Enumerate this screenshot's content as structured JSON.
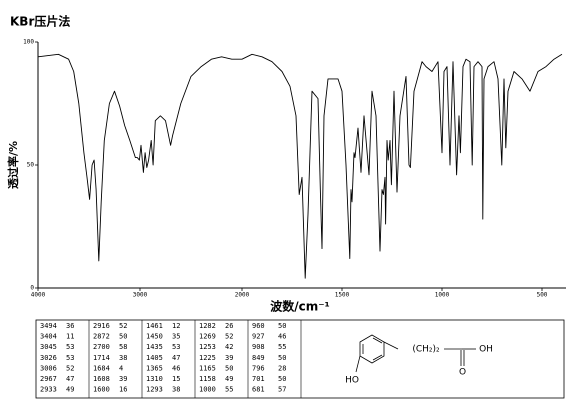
{
  "chart_data": {
    "type": "line",
    "title": "KBr压片法",
    "xlabel": "波数/cm⁻¹",
    "ylabel": "透过率/%",
    "x": [
      4000,
      3800,
      3700,
      3650,
      3600,
      3550,
      3520,
      3494,
      3470,
      3450,
      3430,
      3404,
      3380,
      3350,
      3300,
      3250,
      3200,
      3150,
      3100,
      3045,
      3026,
      3006,
      2990,
      2967,
      2950,
      2933,
      2916,
      2890,
      2872,
      2850,
      2800,
      2750,
      2700,
      2680,
      2600,
      2500,
      2400,
      2300,
      2200,
      2100,
      2000,
      1950,
      1900,
      1850,
      1800,
      1760,
      1730,
      1714,
      1700,
      1684,
      1670,
      1650,
      1620,
      1608,
      1600,
      1590,
      1570,
      1520,
      1500,
      1480,
      1461,
      1455,
      1450,
      1440,
      1435,
      1420,
      1405,
      1390,
      1365,
      1350,
      1330,
      1310,
      1300,
      1293,
      1285,
      1282,
      1275,
      1269,
      1260,
      1253,
      1240,
      1225,
      1210,
      1180,
      1165,
      1158,
      1140,
      1100,
      1080,
      1050,
      1020,
      1000,
      990,
      975,
      960,
      945,
      927,
      915,
      908,
      895,
      880,
      860,
      849,
      840,
      820,
      800,
      796,
      790,
      770,
      740,
      720,
      701,
      690,
      681,
      670,
      640,
      600,
      560,
      520,
      480,
      440,
      400
    ],
    "series": [
      {
        "color": "#000000",
        "values": [
          94,
          95,
          93,
          88,
          75,
          55,
          45,
          36,
          50,
          52,
          40,
          11,
          35,
          60,
          75,
          80,
          74,
          66,
          60,
          53,
          53,
          52,
          58,
          47,
          55,
          49,
          52,
          60,
          50,
          68,
          70,
          68,
          58,
          62,
          75,
          86,
          90,
          93,
          94,
          93,
          93,
          95,
          94,
          92,
          88,
          82,
          70,
          38,
          45,
          4,
          30,
          80,
          77,
          39,
          16,
          70,
          85,
          85,
          80,
          50,
          12,
          40,
          35,
          55,
          53,
          65,
          47,
          70,
          46,
          80,
          70,
          15,
          40,
          38,
          45,
          26,
          60,
          52,
          60,
          42,
          80,
          39,
          70,
          86,
          50,
          49,
          80,
          92,
          90,
          88,
          92,
          55,
          88,
          90,
          50,
          92,
          46,
          70,
          55,
          90,
          93,
          92,
          50,
          90,
          92,
          90,
          28,
          85,
          90,
          92,
          85,
          50,
          85,
          57,
          80,
          88,
          85,
          80,
          88,
          90,
          93,
          95
        ]
      }
    ],
    "xlim": [
      4000,
      400
    ],
    "x_scale_break": 2000,
    "ylim": [
      0,
      100
    ],
    "xticks": [
      4000,
      3000,
      2000,
      1500,
      1000,
      500
    ],
    "yticks": [
      0,
      50,
      100
    ]
  },
  "peak_table": [
    [
      [
        "3494",
        "36"
      ],
      [
        "3404",
        "11"
      ],
      [
        "3045",
        "53"
      ],
      [
        "3026",
        "53"
      ],
      [
        "3006",
        "52"
      ],
      [
        "2967",
        "47"
      ],
      [
        "2933",
        "49"
      ]
    ],
    [
      [
        "2916",
        "52"
      ],
      [
        "2872",
        "50"
      ],
      [
        "2700",
        "58"
      ],
      [
        "1714",
        "38"
      ],
      [
        "1684",
        "4"
      ],
      [
        "1608",
        "39"
      ],
      [
        "1600",
        "16"
      ]
    ],
    [
      [
        "1461",
        "12"
      ],
      [
        "1450",
        "35"
      ],
      [
        "1435",
        "53"
      ],
      [
        "1405",
        "47"
      ],
      [
        "1365",
        "46"
      ],
      [
        "1310",
        "15"
      ],
      [
        "1293",
        "38"
      ]
    ],
    [
      [
        "1282",
        "26"
      ],
      [
        "1269",
        "52"
      ],
      [
        "1253",
        "42"
      ],
      [
        "1225",
        "39"
      ],
      [
        "1165",
        "50"
      ],
      [
        "1158",
        "49"
      ],
      [
        "1000",
        "55"
      ]
    ],
    [
      [
        "960",
        "50"
      ],
      [
        "927",
        "46"
      ],
      [
        "908",
        "55"
      ],
      [
        "849",
        "50"
      ],
      [
        "796",
        "28"
      ],
      [
        "701",
        "50"
      ],
      [
        "681",
        "57"
      ]
    ]
  ],
  "structure": {
    "chain": "(CH₂)₂",
    "hydroxyl": "HO",
    "acid_oh": "OH",
    "carbonyl_o": "O"
  }
}
